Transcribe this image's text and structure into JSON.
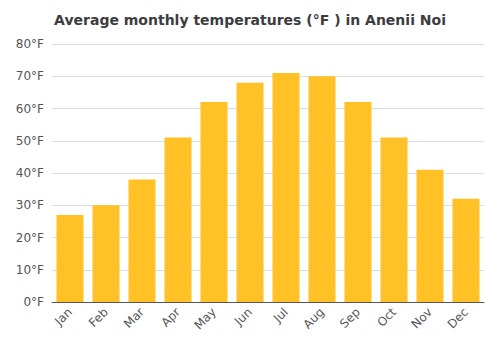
{
  "chart_data": {
    "type": "bar",
    "title": "Average monthly temperatures (°F ) in Anenii Noi",
    "categories": [
      "Jan",
      "Feb",
      "Mar",
      "Apr",
      "May",
      "Jun",
      "Jul",
      "Aug",
      "Sep",
      "Oct",
      "Nov",
      "Dec"
    ],
    "values": [
      27,
      30,
      38,
      51,
      62,
      68,
      71,
      70,
      62,
      51,
      41,
      32
    ],
    "color": "#FFC125",
    "ylim": [
      0,
      80
    ],
    "yticks": [
      {
        "value": 0,
        "label": "0°F"
      },
      {
        "value": 10,
        "label": "10°F"
      },
      {
        "value": 20,
        "label": "20°F"
      },
      {
        "value": 30,
        "label": "30°F"
      },
      {
        "value": 40,
        "label": "40°F"
      },
      {
        "value": 50,
        "label": "50°F"
      },
      {
        "value": 60,
        "label": "60°F"
      },
      {
        "value": 70,
        "label": "70°F"
      },
      {
        "value": 80,
        "label": "80°F"
      }
    ],
    "grid": true
  }
}
